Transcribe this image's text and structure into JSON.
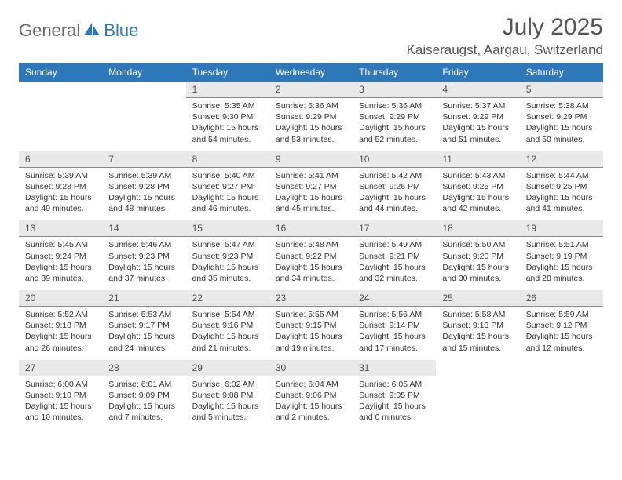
{
  "logo": {
    "text1": "General",
    "text2": "Blue"
  },
  "title": "July 2025",
  "location": "Kaiseraugst, Aargau, Switzerland",
  "colors": {
    "header_bg": "#2e77b8",
    "header_text": "#ffffff",
    "daynum_bg": "#e9e9e9",
    "daynum_border": "#888888",
    "body_text": "#333333",
    "title_text": "#555555",
    "logo_gray": "#6a6a6a",
    "logo_blue": "#2e77b8",
    "page_bg": "#ffffff"
  },
  "typography": {
    "title_fontsize": 30,
    "location_fontsize": 17,
    "weekday_fontsize": 12,
    "daynum_fontsize": 12,
    "cell_fontsize": 10.5
  },
  "layout": {
    "columns": 7,
    "rows": 5,
    "first_day_column_index": 2
  },
  "weekdays": [
    "Sunday",
    "Monday",
    "Tuesday",
    "Wednesday",
    "Thursday",
    "Friday",
    "Saturday"
  ],
  "days": [
    {
      "n": 1,
      "sunrise": "5:35 AM",
      "sunset": "9:30 PM",
      "daylight": "15 hours and 54 minutes."
    },
    {
      "n": 2,
      "sunrise": "5:36 AM",
      "sunset": "9:29 PM",
      "daylight": "15 hours and 53 minutes."
    },
    {
      "n": 3,
      "sunrise": "5:36 AM",
      "sunset": "9:29 PM",
      "daylight": "15 hours and 52 minutes."
    },
    {
      "n": 4,
      "sunrise": "5:37 AM",
      "sunset": "9:29 PM",
      "daylight": "15 hours and 51 minutes."
    },
    {
      "n": 5,
      "sunrise": "5:38 AM",
      "sunset": "9:29 PM",
      "daylight": "15 hours and 50 minutes."
    },
    {
      "n": 6,
      "sunrise": "5:39 AM",
      "sunset": "9:28 PM",
      "daylight": "15 hours and 49 minutes."
    },
    {
      "n": 7,
      "sunrise": "5:39 AM",
      "sunset": "9:28 PM",
      "daylight": "15 hours and 48 minutes."
    },
    {
      "n": 8,
      "sunrise": "5:40 AM",
      "sunset": "9:27 PM",
      "daylight": "15 hours and 46 minutes."
    },
    {
      "n": 9,
      "sunrise": "5:41 AM",
      "sunset": "9:27 PM",
      "daylight": "15 hours and 45 minutes."
    },
    {
      "n": 10,
      "sunrise": "5:42 AM",
      "sunset": "9:26 PM",
      "daylight": "15 hours and 44 minutes."
    },
    {
      "n": 11,
      "sunrise": "5:43 AM",
      "sunset": "9:25 PM",
      "daylight": "15 hours and 42 minutes."
    },
    {
      "n": 12,
      "sunrise": "5:44 AM",
      "sunset": "9:25 PM",
      "daylight": "15 hours and 41 minutes."
    },
    {
      "n": 13,
      "sunrise": "5:45 AM",
      "sunset": "9:24 PM",
      "daylight": "15 hours and 39 minutes."
    },
    {
      "n": 14,
      "sunrise": "5:46 AM",
      "sunset": "9:23 PM",
      "daylight": "15 hours and 37 minutes."
    },
    {
      "n": 15,
      "sunrise": "5:47 AM",
      "sunset": "9:23 PM",
      "daylight": "15 hours and 35 minutes."
    },
    {
      "n": 16,
      "sunrise": "5:48 AM",
      "sunset": "9:22 PM",
      "daylight": "15 hours and 34 minutes."
    },
    {
      "n": 17,
      "sunrise": "5:49 AM",
      "sunset": "9:21 PM",
      "daylight": "15 hours and 32 minutes."
    },
    {
      "n": 18,
      "sunrise": "5:50 AM",
      "sunset": "9:20 PM",
      "daylight": "15 hours and 30 minutes."
    },
    {
      "n": 19,
      "sunrise": "5:51 AM",
      "sunset": "9:19 PM",
      "daylight": "15 hours and 28 minutes."
    },
    {
      "n": 20,
      "sunrise": "5:52 AM",
      "sunset": "9:18 PM",
      "daylight": "15 hours and 26 minutes."
    },
    {
      "n": 21,
      "sunrise": "5:53 AM",
      "sunset": "9:17 PM",
      "daylight": "15 hours and 24 minutes."
    },
    {
      "n": 22,
      "sunrise": "5:54 AM",
      "sunset": "9:16 PM",
      "daylight": "15 hours and 21 minutes."
    },
    {
      "n": 23,
      "sunrise": "5:55 AM",
      "sunset": "9:15 PM",
      "daylight": "15 hours and 19 minutes."
    },
    {
      "n": 24,
      "sunrise": "5:56 AM",
      "sunset": "9:14 PM",
      "daylight": "15 hours and 17 minutes."
    },
    {
      "n": 25,
      "sunrise": "5:58 AM",
      "sunset": "9:13 PM",
      "daylight": "15 hours and 15 minutes."
    },
    {
      "n": 26,
      "sunrise": "5:59 AM",
      "sunset": "9:12 PM",
      "daylight": "15 hours and 12 minutes."
    },
    {
      "n": 27,
      "sunrise": "6:00 AM",
      "sunset": "9:10 PM",
      "daylight": "15 hours and 10 minutes."
    },
    {
      "n": 28,
      "sunrise": "6:01 AM",
      "sunset": "9:09 PM",
      "daylight": "15 hours and 7 minutes."
    },
    {
      "n": 29,
      "sunrise": "6:02 AM",
      "sunset": "9:08 PM",
      "daylight": "15 hours and 5 minutes."
    },
    {
      "n": 30,
      "sunrise": "6:04 AM",
      "sunset": "9:06 PM",
      "daylight": "15 hours and 2 minutes."
    },
    {
      "n": 31,
      "sunrise": "6:05 AM",
      "sunset": "9:05 PM",
      "daylight": "15 hours and 0 minutes."
    }
  ],
  "labels": {
    "sunrise_prefix": "Sunrise: ",
    "sunset_prefix": "Sunset: ",
    "daylight_prefix": "Daylight: "
  }
}
